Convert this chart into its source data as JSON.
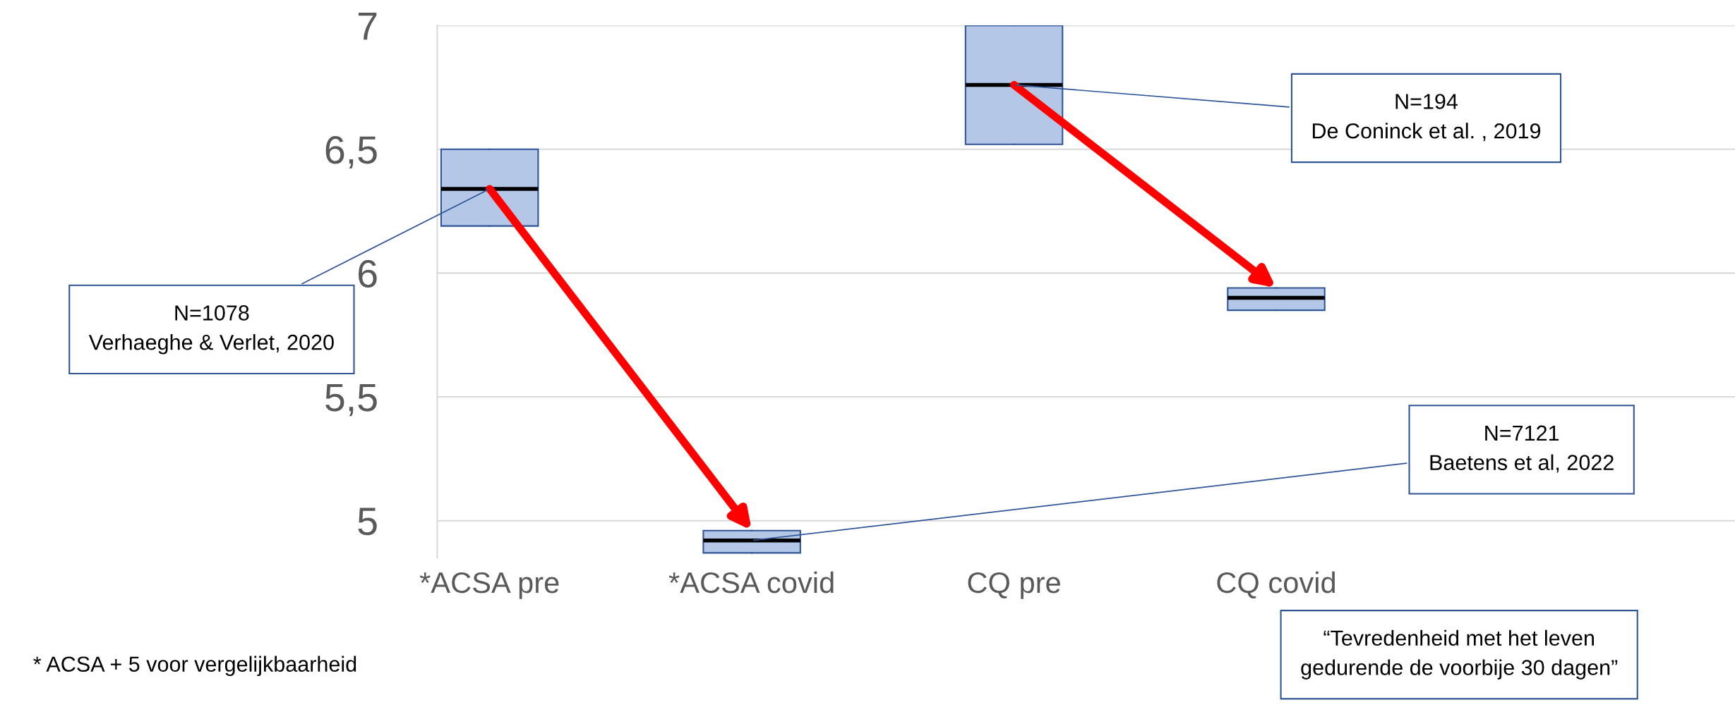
{
  "chart_data": {
    "type": "box",
    "categories": [
      "*ACSA pre",
      "*ACSA covid",
      "CQ pre",
      "CQ covid"
    ],
    "boxes": [
      {
        "low": 6.19,
        "q1": 6.19,
        "median": 6.34,
        "q3": 6.5,
        "high": 6.5
      },
      {
        "low": 4.87,
        "q1": 4.87,
        "median": 4.92,
        "q3": 4.96,
        "high": 4.96
      },
      {
        "low": 6.52,
        "q1": 6.52,
        "median": 6.76,
        "q3": 7.0,
        "high": 7.0
      },
      {
        "low": 5.85,
        "q1": 5.85,
        "median": 5.9,
        "q3": 5.94,
        "high": 5.94
      }
    ],
    "color": "#b4c7e7",
    "ylim": [
      4.85,
      7.0
    ],
    "yticks": [
      {
        "value": 5,
        "label": "5"
      },
      {
        "value": 5.5,
        "label": "5,5"
      },
      {
        "value": 6,
        "label": "6"
      },
      {
        "value": 6.5,
        "label": "6,5"
      },
      {
        "value": 7,
        "label": "7"
      }
    ],
    "grid": "y",
    "annotations": [
      {
        "text": "N=1078\nVerhaeghe & Verlet, 2020",
        "x": "*ACSA pre",
        "y": 6.34
      },
      {
        "text": "N=194\nDe Coninck et al. , 2019",
        "x": "CQ pre",
        "y": 6.76
      },
      {
        "text": "N=7121\nBaetens et al, 2022",
        "x": "*ACSA covid",
        "y": 4.92
      },
      "“Tevredenheid met het leven\ngedurende de voorbije 30 dagen”",
      "* ACSA + 5 voor vergelijkbaarheid"
    ]
  }
}
